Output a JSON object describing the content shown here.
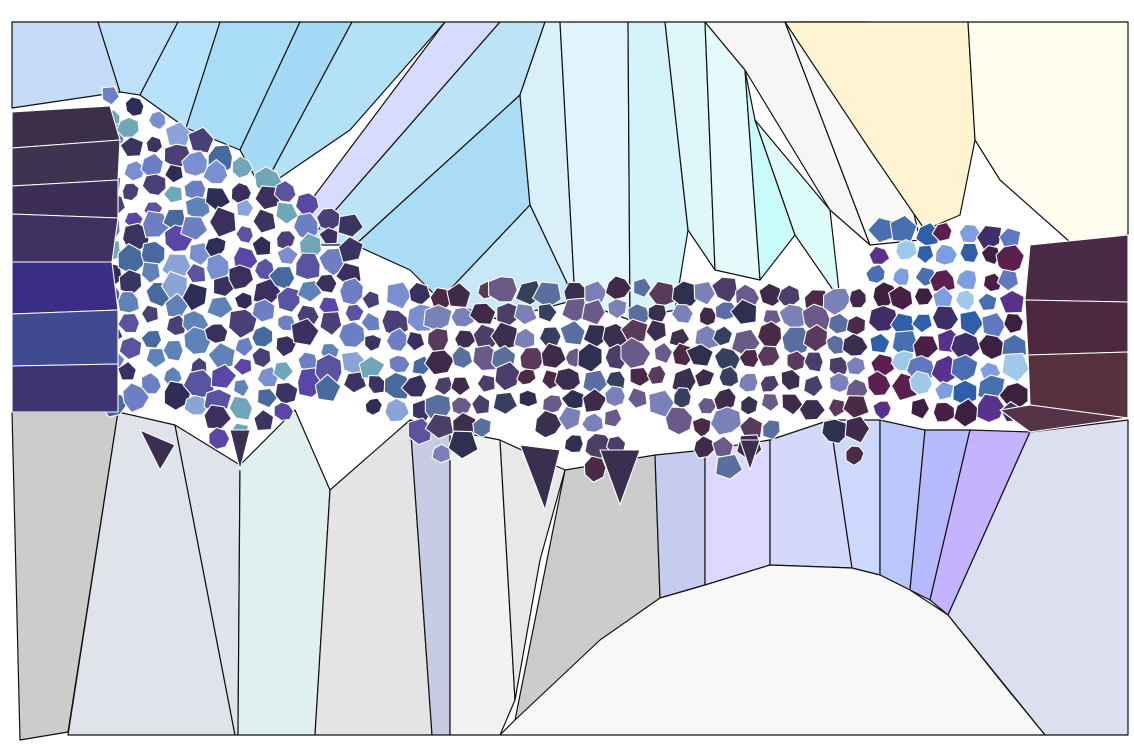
{
  "artwork": {
    "description_visible_text": "",
    "style": "voronoi-mosaic",
    "palette": {
      "sky_light": "#d9f1fb",
      "sky_blue": "#a9dcf6",
      "sky_cyan": "#cfffff",
      "lavender": "#d6dcff",
      "sun_cream": "#fff3d2",
      "sun_ivory": "#fffdf0",
      "indigo_dark": "#3a2f4f",
      "indigo_mid": "#4b3f78",
      "violet": "#5946a6",
      "steel_blue": "#5f82b8",
      "plum": "#4a2a45",
      "maroon": "#56303c",
      "ground_gray": "#cccccc",
      "ground_light": "#e4e4e4",
      "ground_mint": "#e0f0f0",
      "ground_white": "#f8f8f8",
      "ground_periwinkle": "#c6ccef",
      "ground_lilac": "#ddd8ff",
      "outline_dark": "#111111",
      "outline_light": "#ffffff"
    }
  }
}
